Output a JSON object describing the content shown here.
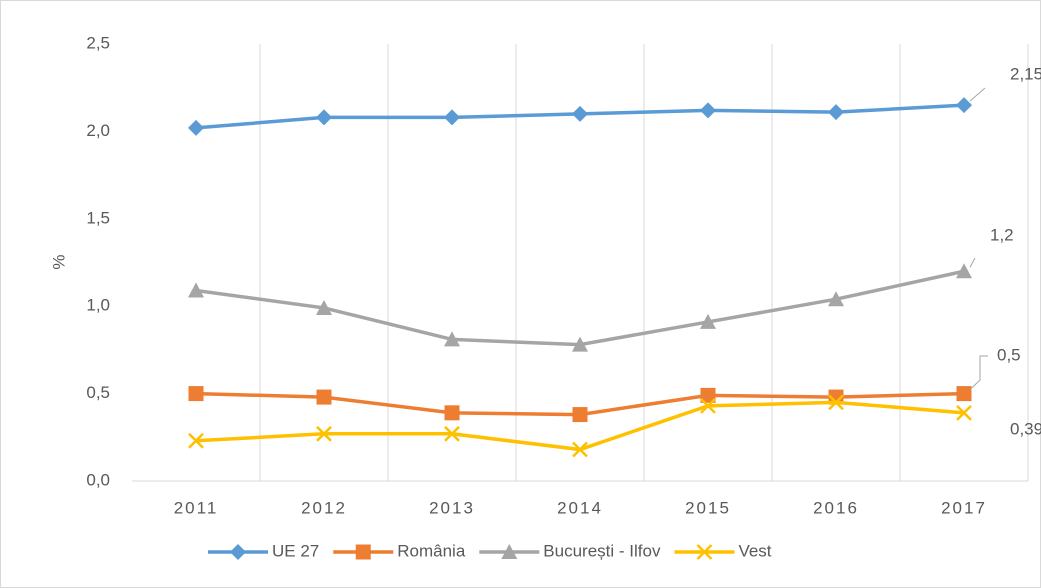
{
  "chart_data": {
    "type": "line",
    "y_label": "%",
    "categories": [
      "2011",
      "2012",
      "2013",
      "2014",
      "2015",
      "2016",
      "2017"
    ],
    "series": [
      {
        "name": "UE 27",
        "color": "#5b9bd5",
        "marker": "diamond",
        "values": [
          2.02,
          2.08,
          2.08,
          2.1,
          2.12,
          2.11,
          2.15
        ],
        "value_labels": [
          null,
          null,
          null,
          null,
          null,
          null,
          "2,15"
        ]
      },
      {
        "name": "România",
        "color": "#ed7d31",
        "marker": "square",
        "values": [
          0.5,
          0.48,
          0.39,
          0.38,
          0.49,
          0.48,
          0.5
        ],
        "value_labels": [
          null,
          null,
          null,
          null,
          null,
          null,
          "0,5"
        ]
      },
      {
        "name": "București - Ilfov",
        "color": "#a5a5a5",
        "marker": "triangle",
        "values": [
          1.09,
          0.99,
          0.81,
          0.78,
          0.91,
          1.04,
          1.2
        ],
        "value_labels": [
          null,
          null,
          null,
          null,
          null,
          null,
          "1,2"
        ]
      },
      {
        "name": "Vest",
        "color": "#ffc000",
        "marker": "x",
        "values": [
          0.23,
          0.27,
          0.27,
          0.18,
          0.43,
          0.45,
          0.39
        ],
        "value_labels": [
          null,
          null,
          null,
          null,
          null,
          null,
          "0,39"
        ]
      }
    ],
    "ylim": [
      0,
      2.5
    ],
    "yticks": [
      {
        "value": 0,
        "label": "0,0"
      },
      {
        "value": 0.5,
        "label": "0,5"
      },
      {
        "value": 1,
        "label": "1,0"
      },
      {
        "value": 1.5,
        "label": "1,5"
      },
      {
        "value": 2,
        "label": "2,0"
      },
      {
        "value": 2.5,
        "label": "2,5"
      }
    ],
    "grid": "vertical",
    "legend": "bottom"
  }
}
